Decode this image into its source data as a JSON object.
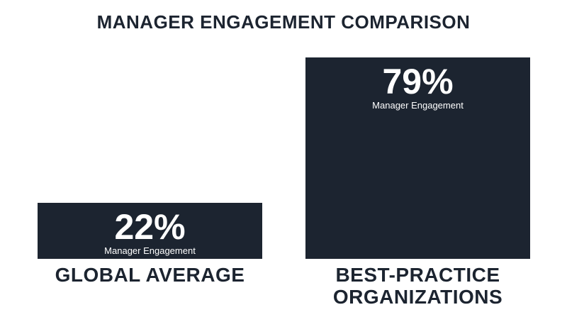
{
  "chart_data": {
    "type": "bar",
    "title": "MANAGER ENGAGEMENT COMPARISON",
    "categories": [
      "GLOBAL AVERAGE",
      "BEST-PRACTICE ORGANIZATIONS"
    ],
    "values": [
      22,
      79
    ],
    "value_labels": [
      "22%",
      "79%"
    ],
    "bar_caption": "Manager Engagement",
    "color": "#1c2430"
  }
}
